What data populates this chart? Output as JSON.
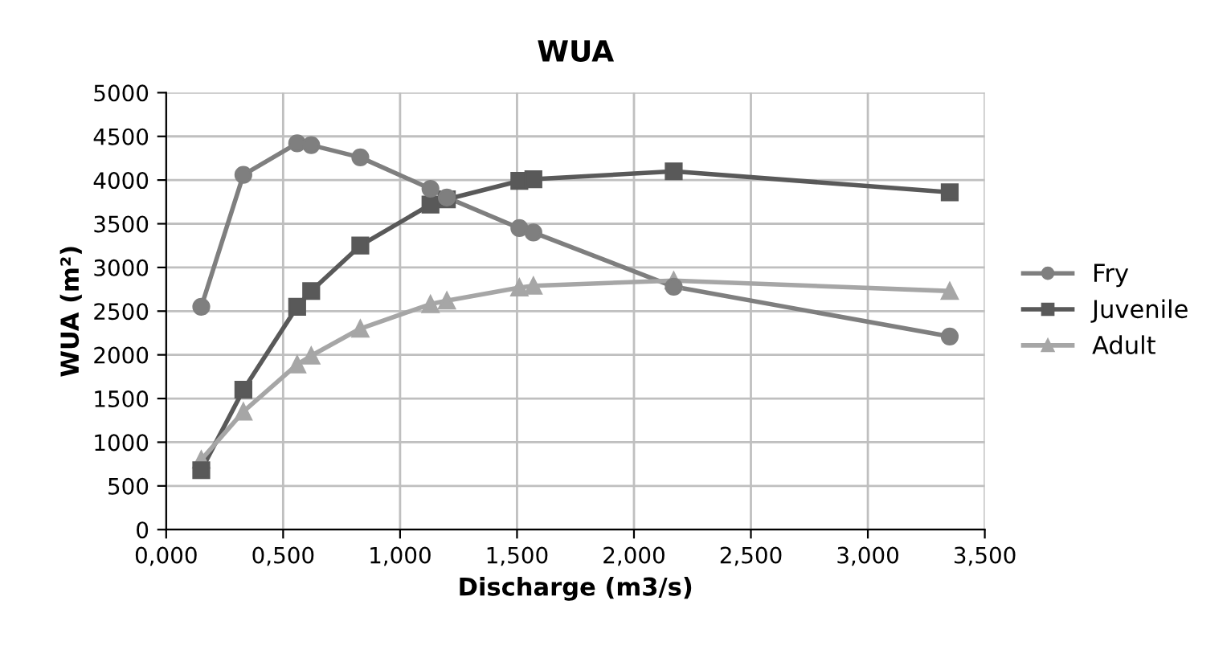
{
  "chart_data": {
    "type": "line",
    "title": "WUA",
    "xlabel": "Discharge (m3/s)",
    "ylabel": "WUA (m²)",
    "x": [
      0.15,
      0.33,
      0.56,
      0.62,
      0.83,
      1.13,
      1.2,
      1.51,
      1.57,
      2.17,
      3.35
    ],
    "series": [
      {
        "name": "Fry",
        "color": "#7f7f7f",
        "marker": "circle",
        "values": [
          2550,
          4060,
          4420,
          4400,
          4260,
          3900,
          3800,
          3450,
          3400,
          2780,
          2210
        ]
      },
      {
        "name": "Juvenile",
        "color": "#595959",
        "marker": "square",
        "values": [
          680,
          1600,
          2550,
          2730,
          3250,
          3720,
          3780,
          3990,
          4010,
          4100,
          3860
        ]
      },
      {
        "name": "Adult",
        "color": "#a6a6a6",
        "marker": "triangle",
        "values": [
          800,
          1350,
          1890,
          1990,
          2300,
          2580,
          2620,
          2770,
          2790,
          2850,
          2730
        ]
      }
    ],
    "xlim": [
      0,
      3.5
    ],
    "xticks": [
      {
        "value": 0,
        "label": "0,000"
      },
      {
        "value": 0.5,
        "label": "0,500"
      },
      {
        "value": 1,
        "label": "1,000"
      },
      {
        "value": 1.5,
        "label": "1,500"
      },
      {
        "value": 2,
        "label": "2,000"
      },
      {
        "value": 2.5,
        "label": "2,500"
      },
      {
        "value": 3,
        "label": "3,000"
      },
      {
        "value": 3.5,
        "label": "3,500"
      }
    ],
    "ylim": [
      0,
      5000
    ],
    "yticks": [
      0,
      500,
      1000,
      1500,
      2000,
      2500,
      3000,
      3500,
      4000,
      4500,
      5000
    ],
    "grid": true,
    "legend": "right"
  }
}
